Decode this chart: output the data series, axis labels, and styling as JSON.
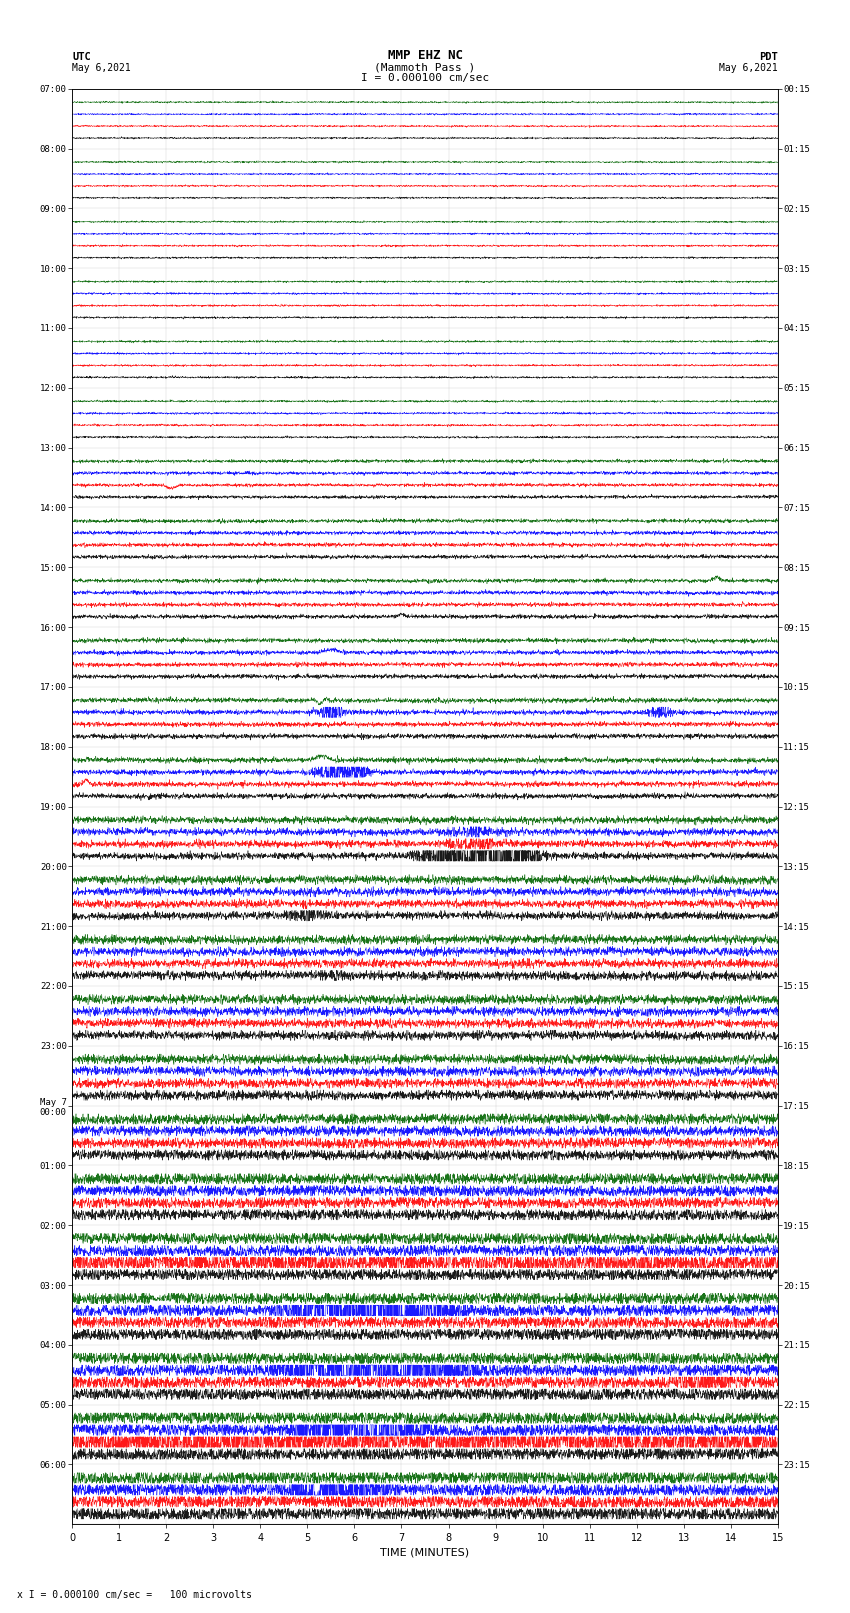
{
  "title_line1": "MMP EHZ NC",
  "title_line2": "(Mammoth Pass )",
  "title_scale": "I = 0.000100 cm/sec",
  "left_label_line1": "UTC",
  "left_label_line2": "May 6,2021",
  "right_label_line1": "PDT",
  "right_label_line2": "May 6,2021",
  "xlabel": "TIME (MINUTES)",
  "bottom_note": "x I = 0.000100 cm/sec =   100 microvolts",
  "utc_labels": [
    "07:00",
    "08:00",
    "09:00",
    "10:00",
    "11:00",
    "12:00",
    "13:00",
    "14:00",
    "15:00",
    "16:00",
    "17:00",
    "18:00",
    "19:00",
    "20:00",
    "21:00",
    "22:00",
    "23:00",
    "May 7\n00:00",
    "01:00",
    "02:00",
    "03:00",
    "04:00",
    "05:00",
    "06:00"
  ],
  "pdt_labels": [
    "00:15",
    "01:15",
    "02:15",
    "03:15",
    "04:15",
    "05:15",
    "06:15",
    "07:15",
    "08:15",
    "09:15",
    "10:15",
    "11:15",
    "12:15",
    "13:15",
    "14:15",
    "15:15",
    "16:15",
    "17:15",
    "18:15",
    "19:15",
    "20:15",
    "21:15",
    "22:15",
    "23:15"
  ],
  "n_rows": 24,
  "traces_per_row": 4,
  "colors": [
    "black",
    "red",
    "blue",
    "darkgreen"
  ],
  "xmin": 0,
  "xmax": 15,
  "xticks": [
    0,
    1,
    2,
    3,
    4,
    5,
    6,
    7,
    8,
    9,
    10,
    11,
    12,
    13,
    14,
    15
  ],
  "background_color": "white",
  "plot_bg": "white",
  "grid_color": "#888888",
  "figure_width": 8.5,
  "figure_height": 16.13,
  "dpi": 100
}
